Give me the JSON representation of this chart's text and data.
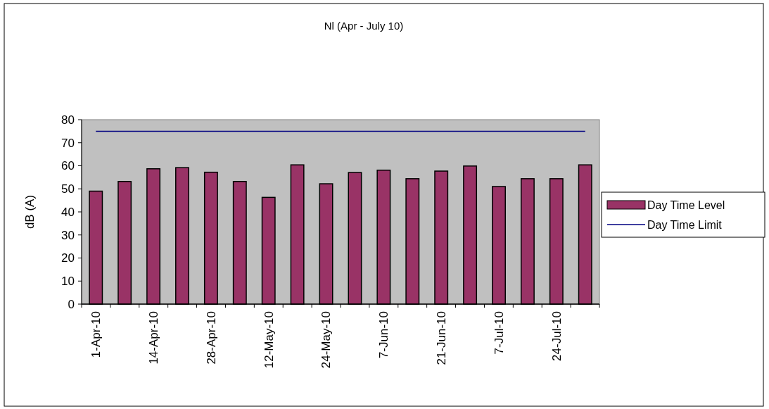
{
  "chart_data": {
    "type": "bar",
    "title": "Nl (Apr - July 10)",
    "ylabel": "dB (A)",
    "categories": [
      "1-Apr-10",
      null,
      "14-Apr-10",
      null,
      "28-Apr-10",
      null,
      "12-May-10",
      null,
      "24-May-10",
      null,
      "7-Jun-10",
      null,
      "21-Jun-10",
      null,
      "7-Jul-10",
      null,
      "24-Jul-10",
      null
    ],
    "series": [
      {
        "name": "Day Time Level",
        "color": "#993366",
        "values": [
          49.0,
          53.2,
          58.7,
          59.2,
          57.2,
          53.2,
          46.3,
          60.4,
          52.2,
          57.1,
          58.1,
          54.4,
          57.7,
          59.9,
          51.0,
          54.4,
          54.4,
          60.4
        ]
      },
      {
        "name": "Day Time Limit",
        "type": "line",
        "color": "#000080",
        "values": [
          75,
          75,
          75,
          75,
          75,
          75,
          75,
          75,
          75,
          75,
          75,
          75,
          75,
          75,
          75,
          75,
          75,
          75
        ]
      }
    ],
    "ylim": [
      0,
      80
    ],
    "yticks": [
      0,
      10,
      20,
      30,
      40,
      50,
      60,
      70,
      80
    ],
    "grid": false,
    "legend": "right"
  }
}
